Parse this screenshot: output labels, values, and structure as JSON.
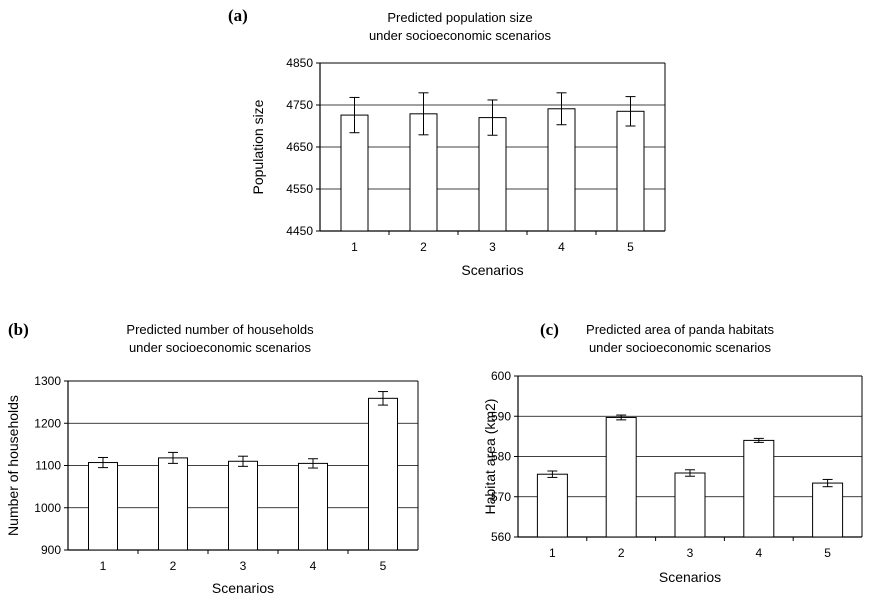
{
  "charts": [
    {
      "panel": "(a)",
      "title_line1": "Predicted population size",
      "title_line2": "under socioeconomic scenarios",
      "chart_data": {
        "type": "bar",
        "categories": [
          "1",
          "2",
          "3",
          "4",
          "5"
        ],
        "values": [
          4726,
          4729,
          4720,
          4741,
          4735
        ],
        "errors": [
          42,
          50,
          42,
          38,
          35
        ],
        "xlabel": "Scenarios",
        "ylabel": "Population size",
        "ylim": [
          4450,
          4850
        ],
        "yticks": [
          "4450",
          "4550",
          "4650",
          "4750",
          "4850"
        ],
        "grid": true
      }
    },
    {
      "panel": "(b)",
      "title_line1": "Predicted number of households",
      "title_line2": "under socioeconomic scenarios",
      "chart_data": {
        "type": "bar",
        "categories": [
          "1",
          "2",
          "3",
          "4",
          "5"
        ],
        "values": [
          1107,
          1118,
          1110,
          1105,
          1259
        ],
        "errors": [
          12,
          13,
          12,
          11,
          16
        ],
        "xlabel": "Scenarios",
        "ylabel": "Number of households",
        "ylim": [
          900,
          1300
        ],
        "yticks": [
          "900",
          "1000",
          "1100",
          "1200",
          "1300"
        ],
        "grid": true
      }
    },
    {
      "panel": "(c)",
      "title_line1": "Predicted area of panda habitats",
      "title_line2": "under socioeconomic scenarios",
      "chart_data": {
        "type": "bar",
        "categories": [
          "1",
          "2",
          "3",
          "4",
          "5"
        ],
        "values": [
          575.6,
          589.7,
          575.9,
          584.0,
          573.4
        ],
        "errors": [
          0.8,
          0.6,
          0.8,
          0.5,
          0.9
        ],
        "xlabel": "Scenarios",
        "ylabel": "Habitat area (km2)",
        "ylim": [
          560,
          600
        ],
        "yticks": [
          "560",
          "570",
          "580",
          "590",
          "600"
        ],
        "grid": true
      }
    }
  ]
}
